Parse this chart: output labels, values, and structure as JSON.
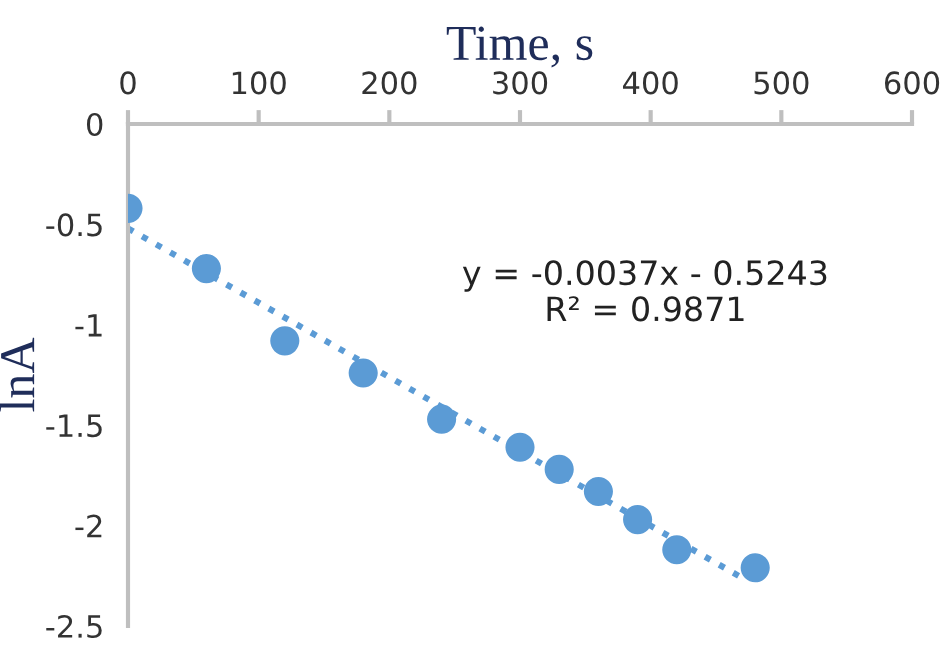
{
  "chart_data": {
    "type": "scatter",
    "xlabel": "Time, s",
    "ylabel": "lnA",
    "series": [
      {
        "color": "#5b9bd5",
        "marker": "circle",
        "x": [
          0,
          60,
          120,
          180,
          240,
          300,
          330,
          360,
          390,
          420,
          480
        ],
        "values": [
          -0.42,
          -0.72,
          -1.08,
          -1.24,
          -1.47,
          -1.61,
          -1.72,
          -1.83,
          -1.97,
          -2.12,
          -2.21
        ]
      },
      {
        "type": "line",
        "color": "#5b9bd5",
        "line_style": "dotted",
        "marker": "none",
        "x": [
          0,
          470
        ],
        "values": [
          -0.52,
          -2.26
        ]
      }
    ],
    "xlim": [
      0,
      600
    ],
    "xticks": [
      0,
      100,
      200,
      300,
      400,
      500,
      600
    ],
    "ylim": [
      -2.5,
      0
    ],
    "yticks": [
      0,
      -0.5,
      -1,
      -1.5,
      -2,
      -2.5
    ],
    "grid": false,
    "legend": false,
    "annotations": [
      "y = -0.0037x - 0.5243\nR² = 0.9871"
    ]
  }
}
